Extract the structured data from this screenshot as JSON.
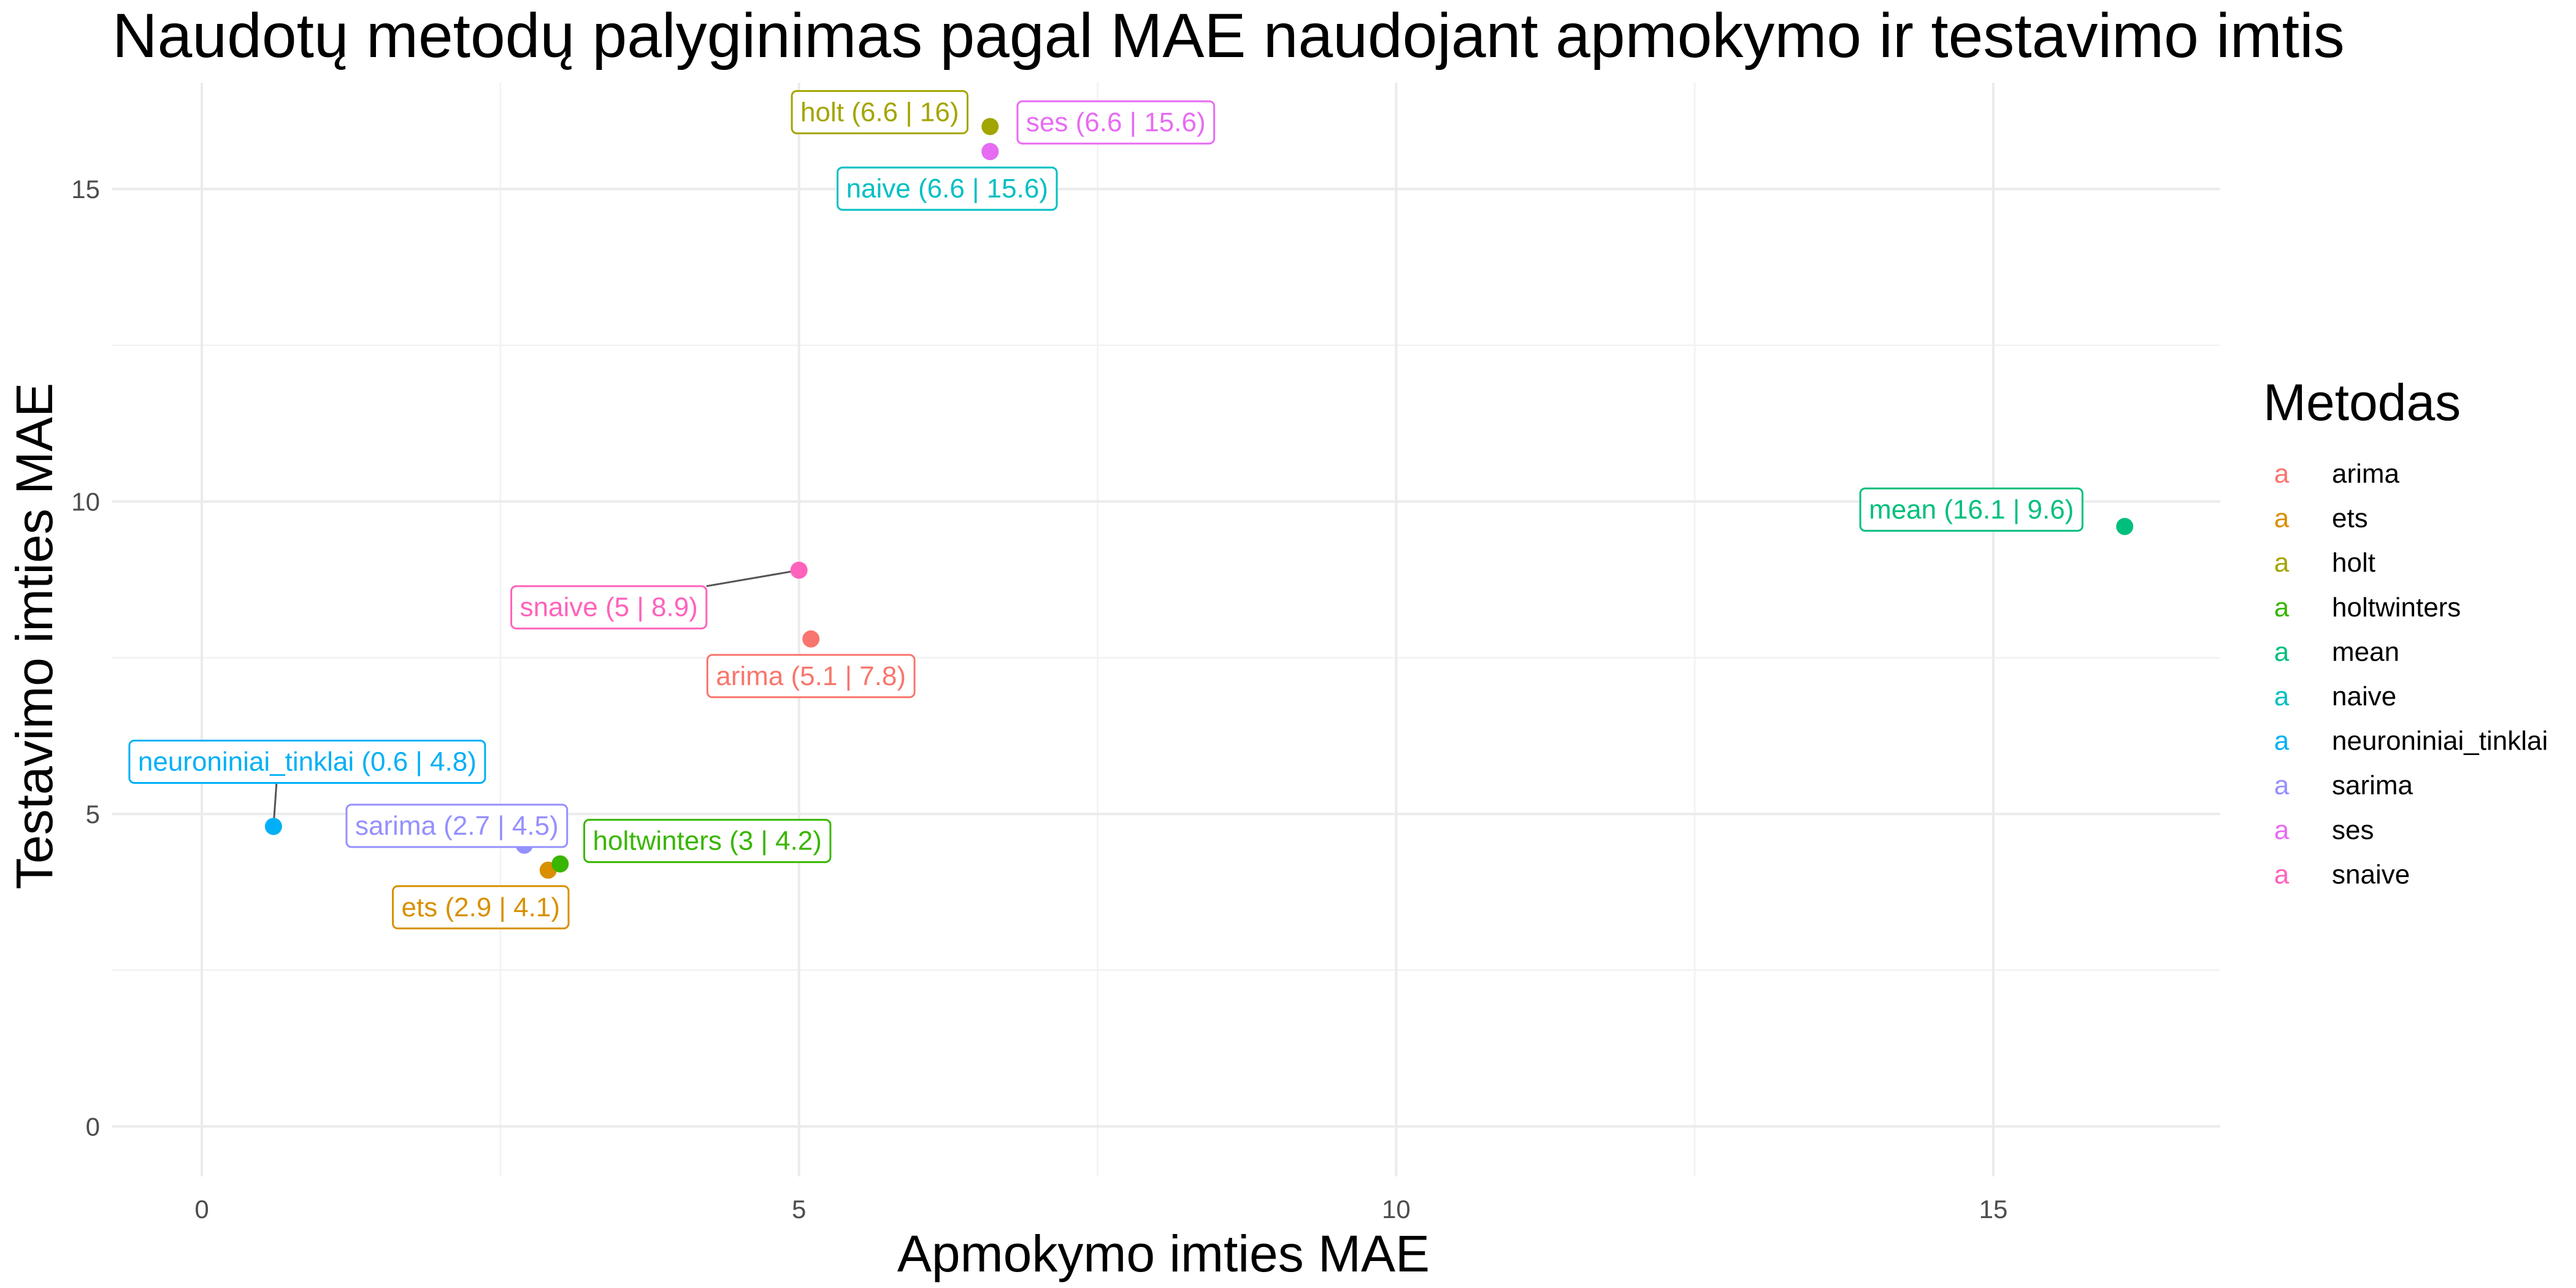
{
  "chart_data": {
    "type": "scatter",
    "title": "Naudotų metodų palyginimas pagal MAE naudojant apmokymo ir testavimo imtis",
    "xlabel": "Apmokymo imties MAE",
    "ylabel": "Testavimo imties MAE",
    "xlim": [
      -0.75,
      16.9
    ],
    "ylim": [
      -0.8,
      16.7
    ],
    "x_ticks": [
      0,
      5,
      10,
      15
    ],
    "y_ticks": [
      0,
      5,
      10,
      15
    ],
    "x_tick_labels": [
      "0",
      "5",
      "10",
      "15"
    ],
    "y_tick_labels": [
      "0",
      "5",
      "10",
      "15"
    ],
    "grid": true,
    "legend": {
      "title": "Metodas",
      "position": "right",
      "key_glyph": "a"
    },
    "points": [
      {
        "name": "arima",
        "x": 5.1,
        "y": 7.8,
        "label": "arima (5.1 | 7.8)",
        "color": "#F8766D"
      },
      {
        "name": "ets",
        "x": 2.9,
        "y": 4.1,
        "label": "ets (2.9 | 4.1)",
        "color": "#D89000"
      },
      {
        "name": "holt",
        "x": 6.6,
        "y": 16.0,
        "label": "holt (6.6 | 16)",
        "color": "#A3A500"
      },
      {
        "name": "holtwinters",
        "x": 3.0,
        "y": 4.2,
        "label": "holtwinters (3 | 4.2)",
        "color": "#39B600"
      },
      {
        "name": "mean",
        "x": 16.1,
        "y": 9.6,
        "label": "mean (16.1 | 9.6)",
        "color": "#00BF7D"
      },
      {
        "name": "naive",
        "x": 6.6,
        "y": 15.6,
        "label": "naive (6.6 | 15.6)",
        "color": "#00BFC4"
      },
      {
        "name": "neuroniniai_tinklai",
        "x": 0.6,
        "y": 4.8,
        "label": "neuroniniai_tinklai (0.6 | 4.8)",
        "color": "#00B0F6"
      },
      {
        "name": "sarima",
        "x": 2.7,
        "y": 4.5,
        "label": "sarima (2.7 | 4.5)",
        "color": "#9590FF"
      },
      {
        "name": "ses",
        "x": 6.6,
        "y": 15.6,
        "label": "ses (6.6 | 15.6)",
        "color": "#E76BF3"
      },
      {
        "name": "snaive",
        "x": 5.0,
        "y": 8.9,
        "label": "snaive (5 | 8.9)",
        "color": "#FF62BC"
      }
    ]
  }
}
